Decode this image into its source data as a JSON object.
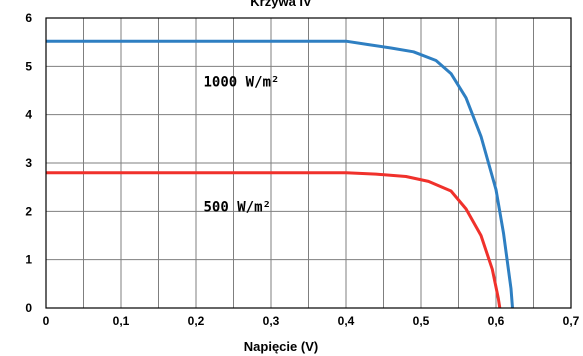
{
  "chart_data": {
    "type": "line",
    "title": "Krzywa IV",
    "xlabel": "Napięcie (V)",
    "ylabel": "",
    "xlim": [
      0,
      0.7
    ],
    "ylim": [
      0,
      6
    ],
    "grid": true,
    "x_ticks": [
      "0",
      "0,1",
      "0,2",
      "0,3",
      "0,4",
      "0,5",
      "0,6",
      "0,7"
    ],
    "y_ticks": [
      "0",
      "1",
      "2",
      "3",
      "4",
      "5",
      "6"
    ],
    "series": [
      {
        "name": "1000 W/m²",
        "color": "#2e7fc2",
        "points": [
          [
            0,
            5.52
          ],
          [
            0.1,
            5.52
          ],
          [
            0.2,
            5.52
          ],
          [
            0.3,
            5.52
          ],
          [
            0.4,
            5.52
          ],
          [
            0.43,
            5.45
          ],
          [
            0.46,
            5.38
          ],
          [
            0.49,
            5.3
          ],
          [
            0.52,
            5.12
          ],
          [
            0.54,
            4.85
          ],
          [
            0.56,
            4.35
          ],
          [
            0.58,
            3.55
          ],
          [
            0.6,
            2.45
          ],
          [
            0.61,
            1.55
          ],
          [
            0.62,
            0.4
          ],
          [
            0.622,
            0
          ]
        ]
      },
      {
        "name": "500 W/m²",
        "color": "#f0312b",
        "points": [
          [
            0,
            2.8
          ],
          [
            0.1,
            2.8
          ],
          [
            0.2,
            2.8
          ],
          [
            0.3,
            2.8
          ],
          [
            0.4,
            2.8
          ],
          [
            0.44,
            2.77
          ],
          [
            0.48,
            2.72
          ],
          [
            0.51,
            2.62
          ],
          [
            0.54,
            2.42
          ],
          [
            0.56,
            2.05
          ],
          [
            0.58,
            1.5
          ],
          [
            0.595,
            0.8
          ],
          [
            0.603,
            0.2
          ],
          [
            0.605,
            0
          ]
        ]
      }
    ]
  }
}
